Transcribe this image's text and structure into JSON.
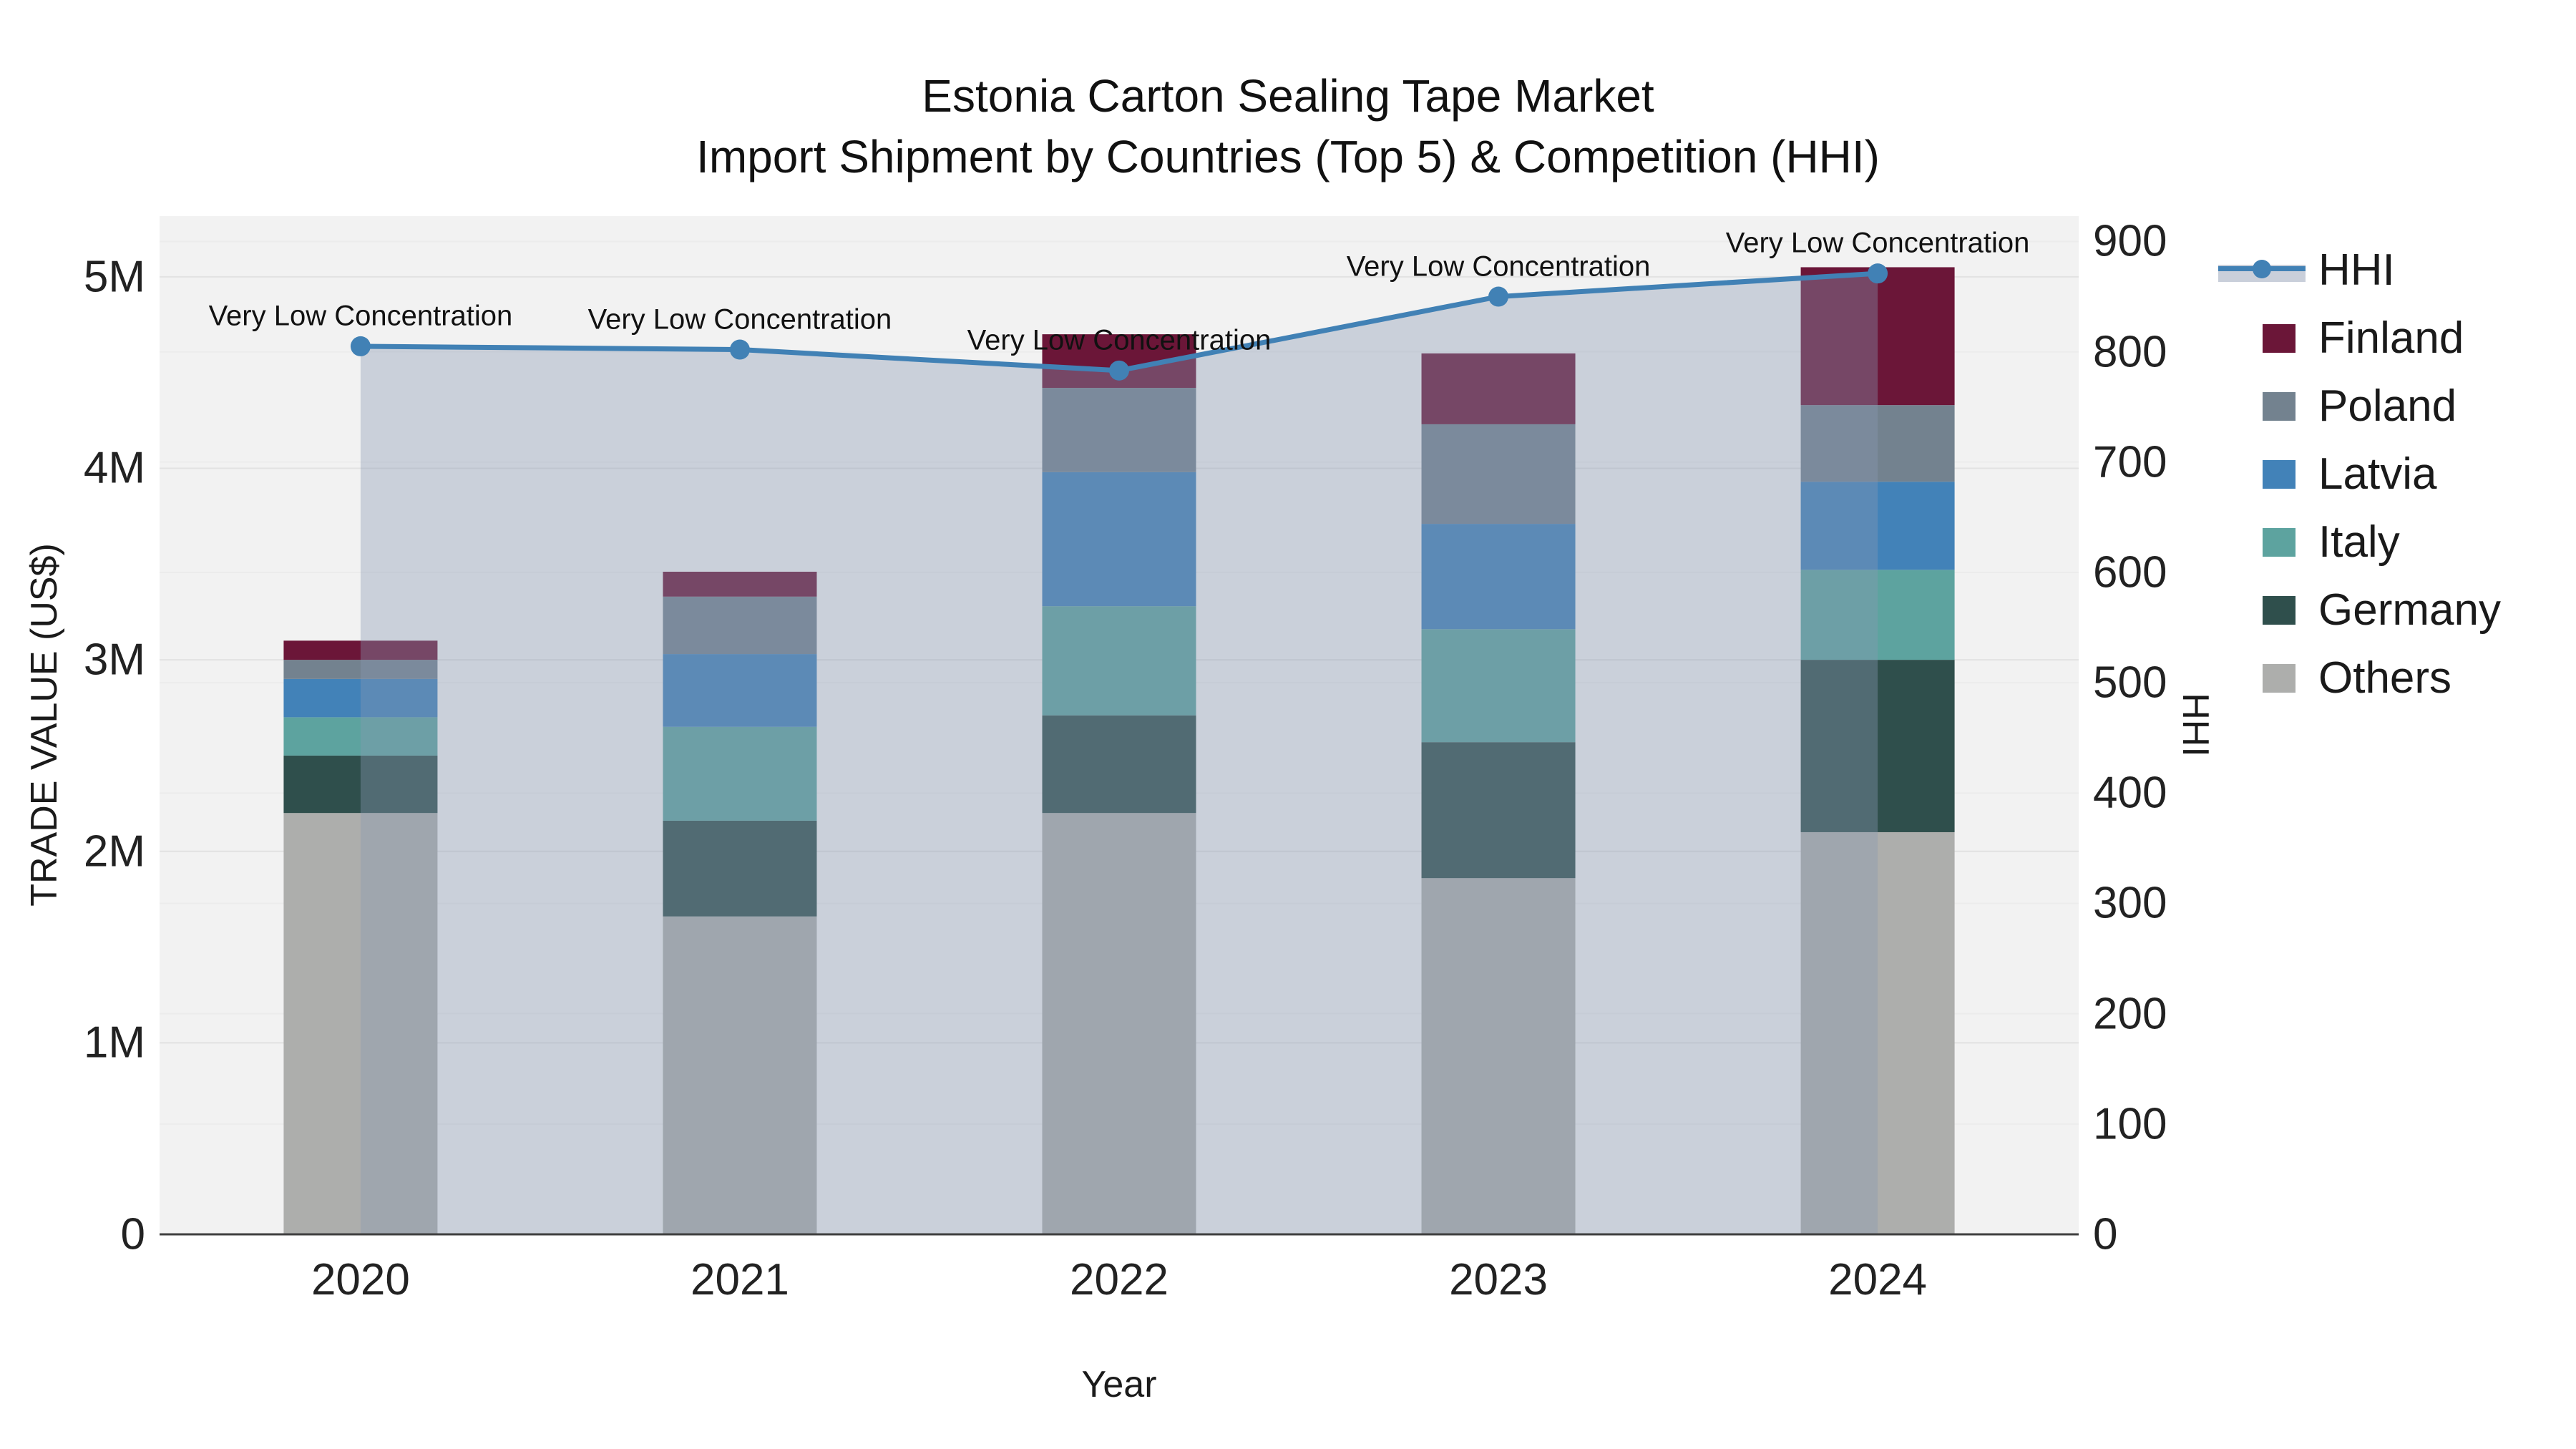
{
  "chart_data": {
    "type": "bar",
    "subtype": "stacked-bars-with-line-overlay",
    "title": {
      "line1": "Estonia Carton Sealing Tape Market",
      "line2": "Import Shipment by Countries (Top 5) & Competition (HHI)"
    },
    "xlabel": "Year",
    "ylabel_left": "TRADE VALUE (US$)",
    "ylabel_right": "HHI",
    "categories": [
      "2020",
      "2021",
      "2022",
      "2023",
      "2024"
    ],
    "unit_left": "millions US$",
    "series": [
      {
        "name": "Finland",
        "color": "#6b1638",
        "values": [
          0.1,
          0.13,
          0.28,
          0.37,
          0.72
        ]
      },
      {
        "name": "Poland",
        "color": "#73828f",
        "values": [
          0.1,
          0.3,
          0.44,
          0.52,
          0.4
        ]
      },
      {
        "name": "Latvia",
        "color": "#4282b8",
        "values": [
          0.2,
          0.38,
          0.7,
          0.55,
          0.46
        ]
      },
      {
        "name": "Italy",
        "color": "#5da39f",
        "values": [
          0.2,
          0.49,
          0.57,
          0.59,
          0.47
        ]
      },
      {
        "name": "Germany",
        "color": "#2f4f4c",
        "values": [
          0.3,
          0.5,
          0.51,
          0.71,
          0.9
        ]
      },
      {
        "name": "Others",
        "color": "#adaeac",
        "values": [
          2.2,
          1.66,
          2.2,
          1.86,
          2.1
        ]
      }
    ],
    "stack_order_bottom_to_top": [
      "Others",
      "Germany",
      "Italy",
      "Latvia",
      "Poland",
      "Finland"
    ],
    "bar_totals": [
      3.1,
      3.46,
      4.7,
      4.6,
      5.05
    ],
    "hhi": {
      "name": "HHI",
      "color": "#4181b5",
      "fill": "rgba(136,153,179,0.38)",
      "values": [
        805,
        802,
        783,
        850,
        871
      ]
    },
    "annotation_text": "Very Low Concentration",
    "axes": {
      "left": {
        "tick_labels": [
          "0",
          "1M",
          "2M",
          "3M",
          "4M",
          "5M"
        ],
        "tick_values": [
          0,
          1,
          2,
          3,
          4,
          5
        ],
        "max": 5.317
      },
      "right": {
        "tick_labels": [
          "0",
          "100",
          "200",
          "300",
          "400",
          "500",
          "600",
          "700",
          "800",
          "900"
        ],
        "tick_values": [
          0,
          100,
          200,
          300,
          400,
          500,
          600,
          700,
          800,
          900
        ],
        "max": 923
      }
    },
    "style": {
      "plot_bg": "#f2f2f2",
      "grid_left": "#e2e2e2",
      "grid_right": "#ececec",
      "axis_line": "#3f3f3f"
    },
    "legend_position": "right"
  }
}
